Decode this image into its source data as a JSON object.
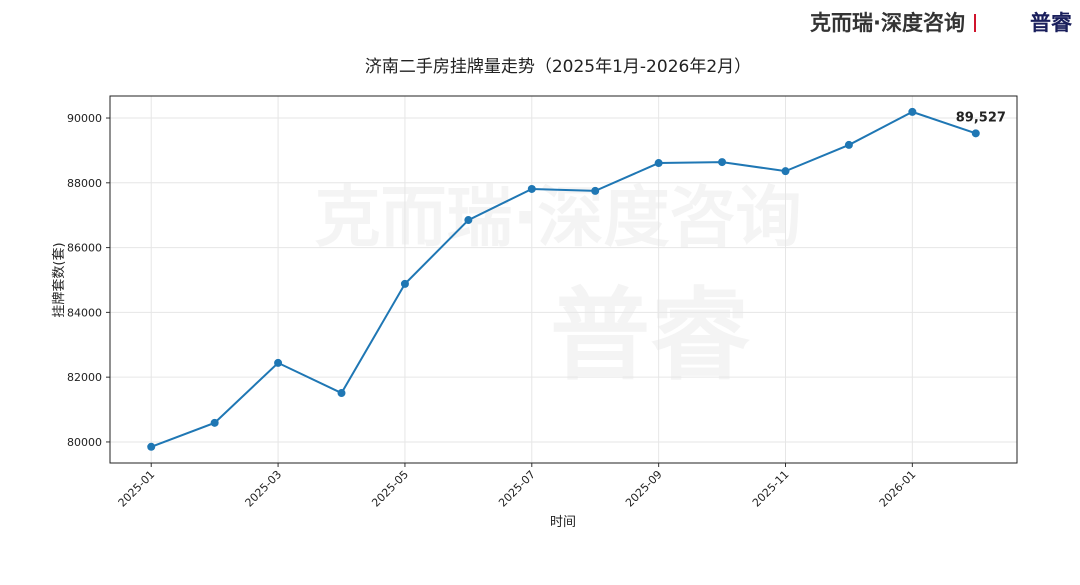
{
  "brand": {
    "name": "克而瑞·深度咨询",
    "partner": "普睿"
  },
  "chart_data": {
    "type": "line",
    "title": "济南二手房挂牌量走势（2025年1月-2026年2月）",
    "xlabel": "时间",
    "ylabel": "挂牌套数(套)",
    "x": [
      "2025-01",
      "2025-02",
      "2025-03",
      "2025-04",
      "2025-05",
      "2025-06",
      "2025-07",
      "2025-08",
      "2025-09",
      "2025-10",
      "2025-11",
      "2025-12",
      "2026-01",
      "2026-02"
    ],
    "values": [
      79850,
      80590,
      82440,
      81510,
      84880,
      86850,
      87810,
      87750,
      88610,
      88640,
      88360,
      89170,
      90190,
      89527
    ],
    "value_labels": [
      null,
      null,
      null,
      null,
      null,
      null,
      null,
      null,
      null,
      null,
      null,
      null,
      null,
      "89,527"
    ],
    "color": "#1f77b4",
    "ylim": [
      79350,
      90680
    ],
    "yticks": [
      80000,
      82000,
      84000,
      86000,
      88000,
      90000
    ],
    "xticks": [
      "2025-01",
      "2025-03",
      "2025-05",
      "2025-07",
      "2025-09",
      "2025-11",
      "2026-01"
    ],
    "grid": true
  }
}
